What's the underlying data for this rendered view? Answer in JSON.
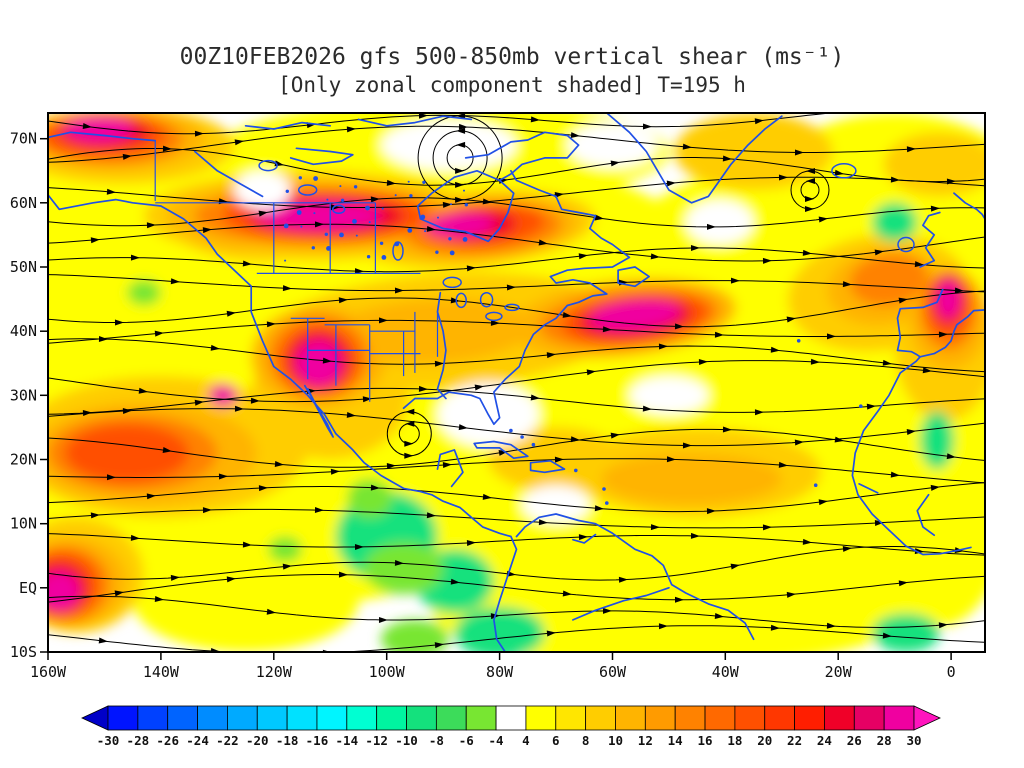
{
  "chart_data": {
    "type": "heatmap",
    "title": "00Z10FEB2026 gfs 500-850mb vertical shear (ms⁻¹)",
    "subtitle": "[Only zonal component shaded] T=195 h",
    "units": "ms⁻¹",
    "forecast_hour": "T=195 h",
    "x_axis": {
      "ticks": [
        "160W",
        "140W",
        "120W",
        "100W",
        "80W",
        "60W",
        "40W",
        "20W",
        "0"
      ],
      "lon_values": [
        -160,
        -140,
        -120,
        -100,
        -80,
        -60,
        -40,
        -20,
        0
      ]
    },
    "y_axis": {
      "ticks": [
        "70N",
        "60N",
        "50N",
        "40N",
        "30N",
        "20N",
        "10N",
        "EQ",
        "10S"
      ],
      "lat_values": [
        70,
        60,
        50,
        40,
        30,
        20,
        10,
        0,
        -10
      ]
    },
    "domain": {
      "lon_min": -160,
      "lon_max": 6,
      "lat_min": -10,
      "lat_max": 74
    },
    "colorbar": {
      "labels": [
        "-30",
        "-28",
        "-26",
        "-24",
        "-22",
        "-20",
        "-18",
        "-16",
        "-14",
        "-12",
        "-10",
        "-8",
        "-6",
        "-4",
        "4",
        "6",
        "8",
        "10",
        "12",
        "14",
        "16",
        "18",
        "20",
        "22",
        "24",
        "26",
        "28",
        "30"
      ],
      "colors": [
        "#0000c8",
        "#0014ff",
        "#0041ff",
        "#0064ff",
        "#008cff",
        "#00aaff",
        "#00c8ff",
        "#00e1ff",
        "#00f5ff",
        "#00ffd2",
        "#00f5a0",
        "#14e17d",
        "#3cdc5a",
        "#78e632",
        "#ffffff",
        "#ffff00",
        "#ffe600",
        "#ffcd00",
        "#ffb400",
        "#ff9b00",
        "#ff8200",
        "#ff6900",
        "#ff5000",
        "#ff3700",
        "#ff1e00",
        "#f00028",
        "#e60064",
        "#f000a0",
        "#ff14be"
      ]
    },
    "overlays": {
      "streamlines_color": "#000000",
      "coastlines_color": "#2050e6",
      "frame_color": "#000000"
    },
    "circulation_centers": [
      {
        "lon": -87,
        "lat": 67,
        "radii": [
          13,
          27,
          42
        ]
      },
      {
        "lon": -96,
        "lat": 24,
        "radii": [
          10,
          22
        ]
      },
      {
        "lon": -25,
        "lat": 62,
        "radii": [
          9,
          19
        ]
      }
    ],
    "shaded_features": [
      [
        -130,
        40,
        36,
        26,
        0,
        5
      ],
      [
        -80,
        46,
        40,
        20,
        0,
        5
      ],
      [
        -30,
        40,
        36,
        26,
        0,
        5
      ],
      [
        -120,
        15,
        46,
        18,
        0,
        5
      ],
      [
        -40,
        8,
        46,
        20,
        0,
        5
      ],
      [
        -10,
        58,
        26,
        16,
        0,
        5
      ],
      [
        -150,
        58,
        22,
        14,
        0,
        5
      ],
      [
        -100,
        55,
        42,
        12,
        0,
        5
      ],
      [
        -2,
        20,
        14,
        26,
        0,
        5
      ],
      [
        -60,
        -3,
        32,
        9,
        0,
        5
      ],
      [
        -150,
        20,
        30,
        14,
        0,
        5
      ],
      [
        -90,
        68,
        40,
        8,
        0,
        5
      ],
      [
        -125,
        -2,
        20,
        8,
        0,
        5
      ],
      [
        -70,
        35,
        25,
        12,
        0,
        5
      ],
      [
        -113,
        58,
        30,
        7,
        0,
        9
      ],
      [
        -85,
        56,
        22,
        6,
        -5,
        9
      ],
      [
        -147,
        69,
        20,
        6,
        0,
        9
      ],
      [
        -90,
        40,
        32,
        9,
        -4,
        9
      ],
      [
        -140,
        22,
        26,
        11,
        0,
        9
      ],
      [
        -155,
        2,
        12,
        9,
        0,
        9
      ],
      [
        -45,
        18,
        22,
        7,
        0,
        9
      ],
      [
        -13,
        46,
        16,
        9,
        -8,
        9
      ],
      [
        -1,
        38,
        9,
        12,
        0,
        9
      ],
      [
        -35,
        68,
        14,
        6,
        0,
        9
      ],
      [
        -2,
        66,
        10,
        5,
        0,
        9
      ],
      [
        -110,
        30,
        14,
        10,
        0,
        9
      ],
      [
        -125,
        57,
        16,
        6,
        6,
        9
      ],
      [
        -70,
        20,
        12,
        5,
        0,
        9
      ],
      [
        -113,
        58,
        26,
        5.5,
        0,
        12
      ],
      [
        -84,
        56,
        18,
        5,
        -4,
        12
      ],
      [
        -148,
        70,
        16,
        5,
        0,
        12
      ],
      [
        -112,
        36,
        12,
        8,
        0,
        12
      ],
      [
        -58,
        42,
        20,
        6,
        -6,
        12
      ],
      [
        -143,
        21,
        20,
        8,
        0,
        12
      ],
      [
        -156,
        1,
        10,
        7,
        0,
        12
      ],
      [
        -12,
        47,
        10,
        6,
        -8,
        12
      ],
      [
        -46,
        17,
        16,
        4,
        0,
        12
      ],
      [
        -0.5,
        42,
        7,
        8,
        0,
        12
      ],
      [
        -128,
        57,
        10,
        4,
        8,
        12
      ],
      [
        -92,
        40,
        18,
        5,
        -3,
        12
      ],
      [
        -112,
        58,
        22,
        4.5,
        0,
        15
      ],
      [
        -83,
        56,
        14,
        4,
        -4,
        15
      ],
      [
        -149,
        70,
        13,
        4,
        0,
        15
      ],
      [
        -112,
        36,
        9,
        6.5,
        0,
        15
      ],
      [
        -57,
        42,
        16,
        4.5,
        -6,
        15
      ],
      [
        -145,
        21,
        15,
        6,
        0,
        15
      ],
      [
        -157,
        0.5,
        8,
        6,
        0,
        15
      ],
      [
        -0.5,
        43,
        5,
        6,
        0,
        15
      ],
      [
        -11,
        48,
        7,
        4,
        -8,
        15
      ],
      [
        -111,
        58,
        18,
        3.8,
        0,
        19
      ],
      [
        -83,
        56.5,
        11,
        3.2,
        -4,
        19
      ],
      [
        -150,
        70.5,
        11,
        3.2,
        0,
        19
      ],
      [
        -112,
        35.5,
        7,
        5.5,
        0,
        19
      ],
      [
        -56,
        42,
        13,
        3.8,
        -6,
        19
      ],
      [
        -146,
        21,
        11,
        4.5,
        0,
        19
      ],
      [
        -157.5,
        0.5,
        6.5,
        5,
        0,
        19
      ],
      [
        -0.5,
        44,
        4,
        5,
        0,
        19
      ],
      [
        -111,
        58,
        14,
        3,
        0,
        25
      ],
      [
        -150,
        71,
        8,
        2.5,
        0,
        25
      ],
      [
        -112,
        35.5,
        5.5,
        4.5,
        0,
        25
      ],
      [
        -56,
        42,
        10,
        3,
        -6,
        25
      ],
      [
        -158,
        0,
        5,
        4,
        0,
        25
      ],
      [
        -0.5,
        45,
        3,
        4,
        0,
        25
      ],
      [
        -84,
        56.5,
        7,
        2.5,
        -4,
        25
      ],
      [
        -112,
        58,
        11,
        2.2,
        0,
        29
      ],
      [
        -87,
        56.5,
        6,
        1.8,
        -4,
        29
      ],
      [
        -151,
        71.5,
        6,
        2,
        0,
        29
      ],
      [
        -112,
        35,
        4,
        3.5,
        0,
        29
      ],
      [
        -56,
        42.5,
        8,
        2.2,
        -6,
        29
      ],
      [
        -158,
        -0.5,
        3.5,
        3,
        0,
        29
      ],
      [
        -0.5,
        45,
        2,
        3,
        0,
        29
      ],
      [
        -129,
        30,
        2.5,
        1.8,
        0,
        29
      ],
      [
        -82,
        27,
        9,
        5,
        0,
        0
      ],
      [
        -89,
        69,
        12,
        4,
        0,
        0
      ],
      [
        -60,
        69,
        8,
        3.5,
        0,
        0
      ],
      [
        -41,
        57,
        6,
        3.5,
        0,
        0
      ],
      [
        -50,
        30,
        7,
        3,
        0,
        0
      ],
      [
        -70,
        13,
        6,
        3,
        0,
        0
      ],
      [
        -122,
        62,
        5,
        3,
        0,
        0
      ],
      [
        -100,
        8,
        9,
        7,
        0,
        -9
      ],
      [
        -88,
        1,
        7,
        5,
        0,
        -9
      ],
      [
        -80,
        -7,
        8,
        4,
        0,
        -9
      ],
      [
        -10,
        57,
        4,
        3,
        0,
        -9
      ],
      [
        -2.5,
        23,
        3,
        4.5,
        0,
        -9
      ],
      [
        -8,
        -7,
        6,
        3,
        0,
        -9
      ],
      [
        -95,
        -8,
        6,
        3,
        0,
        -5
      ],
      [
        -143,
        46,
        3,
        2,
        0,
        -5
      ],
      [
        -118,
        6,
        3,
        2,
        0,
        -5
      ],
      [
        -103,
        14,
        4,
        3,
        0,
        -5
      ],
      [
        -97,
        3,
        7,
        4,
        0,
        -5
      ]
    ]
  }
}
